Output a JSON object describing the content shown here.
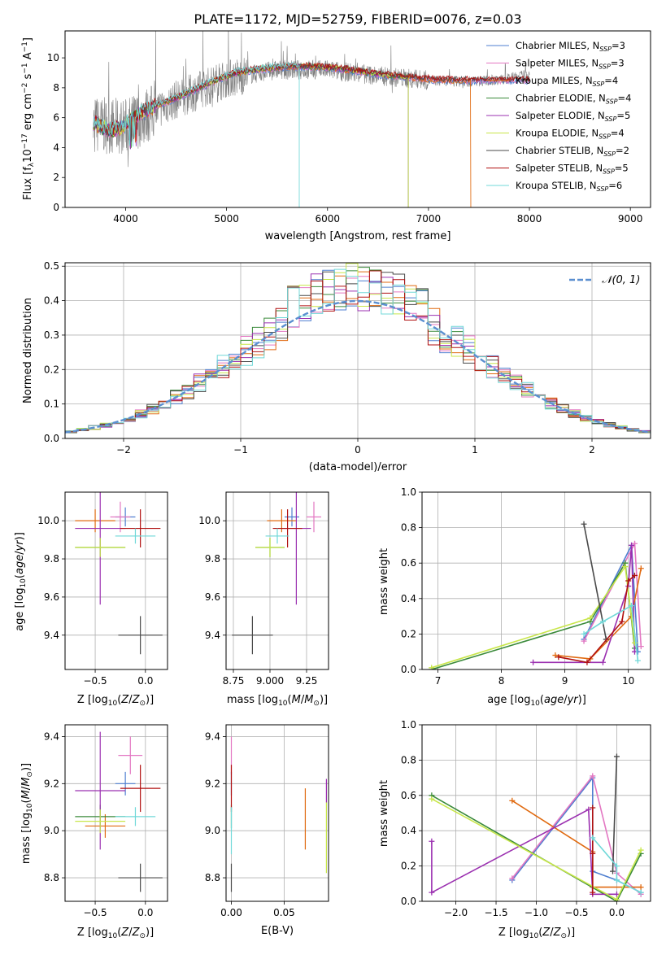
{
  "title": "PLATE=1172, MJD=52759, FIBERID=0076, z=0.03",
  "colors": {
    "Chabrier MILES": "#4f7fd0",
    "Salpeter MILES": "#e377c2",
    "Kroupa MILES": "#e06a10",
    "Chabrier ELODIE": "#3a8a3a",
    "Salpeter ELODIE": "#9b30b0",
    "Kroupa ELODIE": "#c8e64a",
    "Chabrier STELIB": "#4a4a4a",
    "Salpeter STELIB": "#b01010",
    "Kroupa STELIB": "#70d8d8",
    "data": "#808080"
  },
  "chart_data": [
    {
      "id": "spectrum",
      "type": "line",
      "xlabel": "wavelength [Angstrom, rest frame]",
      "ylabel": "Flux [f",
      "ylabel_parts": [
        "Flux [f",
        "λ",
        "10",
        "−17",
        " erg cm",
        "−2",
        " s",
        "−1",
        " A",
        "−1",
        "]"
      ],
      "xlim": [
        3400,
        9200
      ],
      "ylim": [
        0,
        11.8
      ],
      "xticks": [
        4000,
        5000,
        6000,
        7000,
        8000,
        9000
      ],
      "yticks": [
        0,
        2,
        4,
        6,
        8,
        10
      ],
      "grid": false,
      "legend_position": "top-right",
      "legend": [
        {
          "label": "Chabrier MILES, N",
          "sub": "SSP",
          "suffix": "=3",
          "series": "Chabrier MILES"
        },
        {
          "label": "Salpeter MILES, N",
          "sub": "SSP",
          "suffix": "=3",
          "series": "Salpeter MILES"
        },
        {
          "label": "Kroupa MILES, N",
          "sub": "SSP",
          "suffix": "=4",
          "series": "Kroupa MILES"
        },
        {
          "label": "Chabrier ELODIE, N",
          "sub": "SSP",
          "suffix": "=4",
          "series": "Chabrier ELODIE"
        },
        {
          "label": "Salpeter ELODIE, N",
          "sub": "SSP",
          "suffix": "=5",
          "series": "Salpeter ELODIE"
        },
        {
          "label": "Kroupa ELODIE, N",
          "sub": "SSP",
          "suffix": "=4",
          "series": "Kroupa ELODIE"
        },
        {
          "label": "Chabrier STELIB, N",
          "sub": "SSP",
          "suffix": "=2",
          "series": "Chabrier STELIB"
        },
        {
          "label": "Salpeter STELIB, N",
          "sub": "SSP",
          "suffix": "=5",
          "series": "Salpeter STELIB"
        },
        {
          "label": "Kroupa STELIB, N",
          "sub": "SSP",
          "suffix": "=6",
          "series": "Kroupa STELIB"
        }
      ],
      "model_continuum": {
        "x": [
          3680,
          3750,
          3850,
          3950,
          4050,
          4150,
          4300,
          4500,
          4700,
          4900,
          5100,
          5300,
          5600,
          5900,
          6200,
          6500,
          6800,
          7100,
          7400
        ],
        "y": [
          5.6,
          5.3,
          5.0,
          5.2,
          5.7,
          6.2,
          6.7,
          7.2,
          7.8,
          8.4,
          8.9,
          9.1,
          9.3,
          9.3,
          9.1,
          8.8,
          8.6,
          8.4,
          8.4
        ]
      },
      "data_envelope": {
        "x": [
          3680,
          4000,
          4500,
          5000,
          5500,
          6000,
          6500,
          7000,
          7400,
          7800,
          8000
        ],
        "y": [
          5.5,
          5.4,
          7.2,
          8.6,
          9.2,
          9.2,
          8.8,
          8.5,
          8.4,
          8.6,
          8.9
        ]
      },
      "drop_lines": [
        {
          "x": 5720,
          "series": "Kroupa STELIB"
        },
        {
          "x": 6800,
          "series": "Chabrier ELODIE"
        },
        {
          "x": 7420,
          "series": "Kroupa MILES"
        }
      ]
    },
    {
      "id": "residuals",
      "type": "histogram",
      "xlabel": "(data-model)/error",
      "ylabel": "Normed distribution",
      "xlim": [
        -2.5,
        2.5
      ],
      "ylim": [
        0,
        0.51
      ],
      "xticks": [
        -2,
        -1,
        0,
        1,
        2
      ],
      "yticks": [
        0.0,
        0.1,
        0.2,
        0.3,
        0.4,
        0.5
      ],
      "grid": true,
      "legend_position": "top-right",
      "reference_curve": {
        "label": "𝒩(0, 1)",
        "mean": 0,
        "sigma": 1,
        "color": "#5b8fd0"
      },
      "bin_width": 0.1
    },
    {
      "id": "age-vs-Z",
      "type": "errorbar",
      "xlabel": "Z [log",
      "xlabel_tail": "(Z/Z",
      "ylabel": "age  [log",
      "xlim": [
        -0.8,
        0.22
      ],
      "ylim": [
        9.22,
        10.15
      ],
      "xticks": [
        -0.5,
        0.0
      ],
      "yticks": [
        9.4,
        9.6,
        9.8,
        10.0
      ],
      "grid": true,
      "points": [
        {
          "series": "Chabrier MILES",
          "x": -0.2,
          "xerr": 0.1,
          "y": 10.02,
          "yerr": 0.05
        },
        {
          "series": "Salpeter MILES",
          "x": -0.25,
          "xerr": 0.1,
          "y": 10.02,
          "yerr": 0.08
        },
        {
          "series": "Kroupa MILES",
          "x": -0.5,
          "xerr": 0.2,
          "y": 10.0,
          "yerr": 0.06
        },
        {
          "series": "Chabrier ELODIE",
          "x": -0.45,
          "xerr": 0.25,
          "y": 9.86,
          "yerr": 0.05
        },
        {
          "series": "Salpeter ELODIE",
          "x": -0.45,
          "xerr": 0.25,
          "y": 9.96,
          "yerr": 0.4
        },
        {
          "series": "Kroupa ELODIE",
          "x": -0.45,
          "xerr": 0.25,
          "y": 9.86,
          "yerr": 0.05
        },
        {
          "series": "Chabrier STELIB",
          "x": -0.05,
          "xerr": 0.22,
          "y": 9.4,
          "yerr": 0.1
        },
        {
          "series": "Salpeter STELIB",
          "x": -0.05,
          "xerr": 0.2,
          "y": 9.96,
          "yerr": 0.1
        },
        {
          "series": "Kroupa STELIB",
          "x": -0.1,
          "xerr": 0.2,
          "y": 9.92,
          "yerr": 0.04
        }
      ]
    },
    {
      "id": "age-vs-mass",
      "type": "errorbar",
      "xlabel": "mass [log",
      "xlim": [
        8.7,
        9.4
      ],
      "ylim": [
        9.22,
        10.15
      ],
      "xticks": [
        8.75,
        9.0,
        9.25
      ],
      "yticks": [
        9.4,
        9.6,
        9.8,
        10.0
      ],
      "grid": true,
      "points": [
        {
          "series": "Chabrier MILES",
          "x": 9.15,
          "xerr": 0.05,
          "y": 10.02,
          "yerr": 0.05
        },
        {
          "series": "Salpeter MILES",
          "x": 9.3,
          "xerr": 0.05,
          "y": 10.02,
          "yerr": 0.08
        },
        {
          "series": "Kroupa MILES",
          "x": 9.08,
          "xerr": 0.1,
          "y": 10.0,
          "yerr": 0.06
        },
        {
          "series": "Chabrier ELODIE",
          "x": 9.0,
          "xerr": 0.1,
          "y": 9.86,
          "yerr": 0.05
        },
        {
          "series": "Salpeter ELODIE",
          "x": 9.18,
          "xerr": 0.1,
          "y": 9.96,
          "yerr": 0.4
        },
        {
          "series": "Kroupa ELODIE",
          "x": 9.0,
          "xerr": 0.1,
          "y": 9.86,
          "yerr": 0.05
        },
        {
          "series": "Chabrier STELIB",
          "x": 8.88,
          "xerr": 0.14,
          "y": 9.4,
          "yerr": 0.1
        },
        {
          "series": "Salpeter STELIB",
          "x": 9.12,
          "xerr": 0.1,
          "y": 9.96,
          "yerr": 0.1
        },
        {
          "series": "Kroupa STELIB",
          "x": 9.05,
          "xerr": 0.08,
          "y": 9.92,
          "yerr": 0.04
        }
      ]
    },
    {
      "id": "weight-vs-age",
      "type": "line",
      "xlabel": "age  [log",
      "ylabel": "mass weight",
      "xlim": [
        6.75,
        10.35
      ],
      "ylim": [
        0,
        1.0
      ],
      "xticks": [
        7,
        8,
        9,
        10
      ],
      "yticks": [
        0.0,
        0.2,
        0.4,
        0.6,
        0.8,
        1.0
      ],
      "grid": true,
      "series": [
        {
          "name": "Chabrier MILES",
          "x": [
            9.3,
            10.05,
            10.15
          ],
          "y": [
            0.17,
            0.7,
            0.1
          ]
        },
        {
          "name": "Salpeter MILES",
          "x": [
            9.3,
            10.1,
            10.2
          ],
          "y": [
            0.16,
            0.71,
            0.13
          ]
        },
        {
          "name": "Kroupa MILES",
          "x": [
            8.85,
            9.4,
            10.05,
            10.2
          ],
          "y": [
            0.08,
            0.06,
            0.3,
            0.57
          ]
        },
        {
          "name": "Chabrier ELODIE",
          "x": [
            6.9,
            9.4,
            9.95,
            10.1
          ],
          "y": [
            0.0,
            0.27,
            0.6,
            0.12
          ]
        },
        {
          "name": "Salpeter ELODIE",
          "x": [
            8.5,
            9.6,
            10.0,
            10.05,
            10.1
          ],
          "y": [
            0.04,
            0.04,
            0.47,
            0.7,
            0.1
          ]
        },
        {
          "name": "Kroupa ELODIE",
          "x": [
            6.9,
            9.4,
            9.95,
            10.1
          ],
          "y": [
            0.01,
            0.29,
            0.58,
            0.15
          ]
        },
        {
          "name": "Chabrier STELIB",
          "x": [
            9.3,
            9.65
          ],
          "y": [
            0.82,
            0.17
          ]
        },
        {
          "name": "Salpeter STELIB",
          "x": [
            8.9,
            9.35,
            9.9,
            10.0,
            10.1
          ],
          "y": [
            0.07,
            0.04,
            0.27,
            0.5,
            0.53
          ]
        },
        {
          "name": "Kroupa STELIB",
          "x": [
            9.3,
            9.6,
            10.05,
            10.15
          ],
          "y": [
            0.2,
            0.27,
            0.36,
            0.05
          ]
        }
      ]
    },
    {
      "id": "mass-vs-Z",
      "type": "errorbar",
      "xlabel": "Z [log",
      "ylabel": "mass [log",
      "xlim": [
        -0.8,
        0.22
      ],
      "ylim": [
        8.7,
        9.45
      ],
      "xticks": [
        -0.5,
        0.0
      ],
      "yticks": [
        8.8,
        9.0,
        9.2,
        9.4
      ],
      "grid": true,
      "points": [
        {
          "series": "Chabrier MILES",
          "x": -0.2,
          "xerr": 0.1,
          "y": 9.2,
          "yerr": 0.05
        },
        {
          "series": "Salpeter MILES",
          "x": -0.15,
          "xerr": 0.12,
          "y": 9.32,
          "yerr": 0.08
        },
        {
          "series": "Kroupa MILES",
          "x": -0.4,
          "xerr": 0.2,
          "y": 9.02,
          "yerr": 0.05
        },
        {
          "series": "Chabrier ELODIE",
          "x": -0.45,
          "xerr": 0.25,
          "y": 9.06,
          "yerr": 0.05
        },
        {
          "series": "Salpeter ELODIE",
          "x": -0.45,
          "xerr": 0.25,
          "y": 9.17,
          "yerr": 0.25
        },
        {
          "series": "Kroupa ELODIE",
          "x": -0.45,
          "xerr": 0.25,
          "y": 9.04,
          "yerr": 0.05
        },
        {
          "series": "Chabrier STELIB",
          "x": -0.05,
          "xerr": 0.22,
          "y": 8.8,
          "yerr": 0.06
        },
        {
          "series": "Salpeter STELIB",
          "x": -0.05,
          "xerr": 0.2,
          "y": 9.18,
          "yerr": 0.1
        },
        {
          "series": "Kroupa STELIB",
          "x": -0.1,
          "xerr": 0.2,
          "y": 9.06,
          "yerr": 0.04
        }
      ]
    },
    {
      "id": "mass-vs-EBV",
      "type": "errorbar",
      "xlabel": "E(B-V)",
      "xlim": [
        -0.005,
        0.092
      ],
      "ylim": [
        8.7,
        9.45
      ],
      "xticks": [
        0.0,
        0.05
      ],
      "xticklabels": [
        "0.00",
        "0.05"
      ],
      "yticks": [
        8.8,
        9.0,
        9.2,
        9.4
      ],
      "grid": true,
      "points": [
        {
          "series": "Chabrier MILES",
          "x": 0.0,
          "y": 9.2,
          "yerr": 0.05
        },
        {
          "series": "Salpeter MILES",
          "x": 0.0,
          "y": 9.32,
          "yerr": 0.08
        },
        {
          "series": "Kroupa MILES",
          "x": 0.07,
          "y": 9.05,
          "yerr": 0.13
        },
        {
          "series": "Chabrier ELODIE",
          "x": 0.0,
          "y": 9.06,
          "yerr": 0.05
        },
        {
          "series": "Salpeter ELODIE",
          "x": 0.09,
          "y": 9.17,
          "yerr": 0.05
        },
        {
          "series": "Kroupa ELODIE",
          "x": 0.09,
          "y": 8.97,
          "yerr": 0.15
        },
        {
          "series": "Chabrier STELIB",
          "x": 0.0,
          "y": 8.8,
          "yerr": 0.06
        },
        {
          "series": "Salpeter STELIB",
          "x": 0.0,
          "y": 9.18,
          "yerr": 0.1
        },
        {
          "series": "Kroupa STELIB",
          "x": 0.0,
          "y": 9.0,
          "yerr": 0.1
        }
      ]
    },
    {
      "id": "weight-vs-Z",
      "type": "line",
      "xlabel": "Z [log",
      "ylabel": "mass weight",
      "xlim": [
        -2.42,
        0.42
      ],
      "ylim": [
        0,
        1.0
      ],
      "xticks": [
        -2.0,
        -1.5,
        -1.0,
        -0.5,
        0.0
      ],
      "yticks": [
        0.0,
        0.2,
        0.4,
        0.6,
        0.8,
        1.0
      ],
      "grid": true,
      "series": [
        {
          "name": "Chabrier MILES",
          "x": [
            -1.3,
            -0.3,
            -0.3,
            0.0,
            0.3
          ],
          "y": [
            0.12,
            0.7,
            0.17,
            0.12,
            0.05
          ]
        },
        {
          "name": "Salpeter MILES",
          "x": [
            -1.3,
            -0.3,
            0.0,
            0.3
          ],
          "y": [
            0.13,
            0.71,
            0.16,
            0.04
          ]
        },
        {
          "name": "Kroupa MILES",
          "x": [
            -1.3,
            -0.3,
            -0.3,
            0.3
          ],
          "y": [
            0.57,
            0.28,
            0.08,
            0.08
          ]
        },
        {
          "name": "Chabrier ELODIE",
          "x": [
            -2.3,
            0.0,
            0.3
          ],
          "y": [
            0.6,
            0.0,
            0.27
          ]
        },
        {
          "name": "Salpeter ELODIE",
          "x": [
            -2.3,
            -2.3,
            -0.35,
            -0.3,
            0.0
          ],
          "y": [
            0.34,
            0.05,
            0.52,
            0.04,
            0.04
          ]
        },
        {
          "name": "Kroupa ELODIE",
          "x": [
            -2.3,
            0.0,
            0.3
          ],
          "y": [
            0.58,
            0.01,
            0.29
          ]
        },
        {
          "name": "Chabrier STELIB",
          "x": [
            -0.05,
            0.0
          ],
          "y": [
            0.17,
            0.82
          ]
        },
        {
          "name": "Salpeter STELIB",
          "x": [
            -0.3,
            -0.3,
            -0.3
          ],
          "y": [
            0.53,
            0.27,
            0.05
          ]
        },
        {
          "name": "Kroupa STELIB",
          "x": [
            -0.3,
            0.0,
            0.0,
            0.3
          ],
          "y": [
            0.36,
            0.2,
            0.12,
            0.05
          ]
        }
      ]
    }
  ]
}
